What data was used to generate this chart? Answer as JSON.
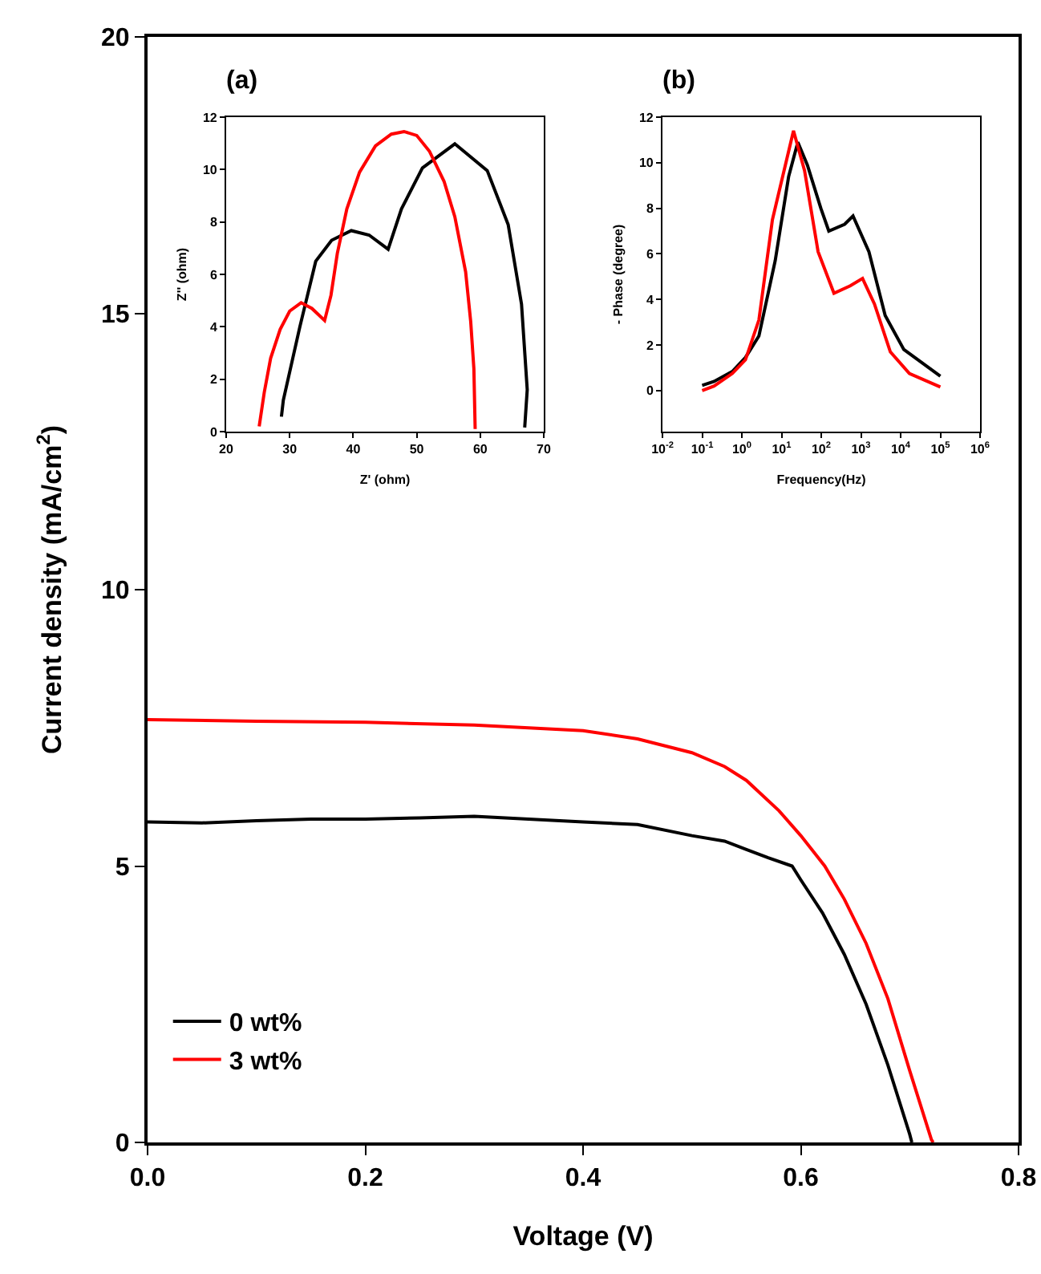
{
  "chart_data": [
    {
      "type": "line",
      "xlabel": "Voltage (V)",
      "ylabel": "Current density (mA/cm$^{2}$)",
      "xlim": [
        0,
        0.8
      ],
      "ylim": [
        0,
        20
      ],
      "xticks": [
        {
          "value": 0,
          "label": "0.0"
        },
        0.2,
        0.4,
        0.6,
        0.8
      ],
      "yticks": [
        0,
        5,
        10,
        15,
        20
      ],
      "legend": "bottom left",
      "x": [
        0,
        0.05,
        0.1,
        0.15,
        0.2,
        0.25,
        0.3,
        0.35,
        0.4,
        0.45,
        0.5,
        0.53,
        0.55,
        0.57,
        0.592,
        0.6,
        0.62,
        0.64,
        0.66,
        0.68,
        0.7,
        0.702
      ],
      "series": [
        {
          "name": "0 wt%",
          "color": "#000000",
          "values": [
            5.8,
            5.78,
            5.82,
            5.85,
            5.85,
            5.87,
            5.9,
            5.85,
            5.8,
            5.75,
            5.55,
            5.45,
            5.3,
            5.15,
            5.0,
            4.75,
            4.15,
            3.4,
            2.5,
            1.4,
            0.15,
            0
          ]
        },
        {
          "name": "3 wt%",
          "color": "#ff0000",
          "x": [
            0,
            0.1,
            0.2,
            0.3,
            0.4,
            0.45,
            0.5,
            0.53,
            0.55,
            0.58,
            0.6,
            0.622,
            0.64,
            0.66,
            0.68,
            0.7,
            0.72,
            0.7216
          ],
          "values": [
            7.65,
            7.62,
            7.6,
            7.55,
            7.45,
            7.3,
            7.05,
            6.8,
            6.55,
            6.0,
            5.55,
            5.0,
            4.4,
            3.6,
            2.6,
            1.3,
            0.05,
            0
          ]
        }
      ]
    },
    {
      "type": "line",
      "title": "(a)",
      "xlabel": "Z' (ohm)",
      "ylabel": "Z'' (ohm)",
      "xlim": [
        20,
        70
      ],
      "ylim": [
        0,
        12
      ],
      "xticks": [
        20,
        30,
        40,
        50,
        60,
        70
      ],
      "yticks": [
        0,
        2,
        4,
        6,
        8,
        10,
        12
      ],
      "series": [
        {
          "color": "#000000",
          "x": [
            28.7,
            29.0,
            31.6,
            34.1,
            36.6,
            39.7,
            42.5,
            45.5,
            47.6,
            50.9,
            56,
            61.1,
            64.4,
            66.5,
            67.4,
            67
          ],
          "values": [
            0.57,
            1.2,
            4.0,
            6.5,
            7.3,
            7.67,
            7.5,
            6.96,
            8.5,
            10.06,
            10.98,
            9.96,
            7.9,
            4.86,
            1.6,
            0.16
          ]
        },
        {
          "color": "#ff0000",
          "x": [
            25.2,
            26,
            27,
            28.5,
            30,
            31.8,
            33.5,
            35.5,
            36.5,
            37.5,
            39,
            41,
            43.5,
            46,
            48,
            50,
            52,
            54.3,
            56,
            57.7,
            58.5,
            59,
            59.2
          ],
          "values": [
            0.2,
            1.5,
            2.8,
            3.9,
            4.6,
            4.92,
            4.7,
            4.24,
            5.2,
            6.8,
            8.5,
            9.9,
            10.9,
            11.35,
            11.45,
            11.3,
            10.7,
            9.55,
            8.2,
            6.1,
            4.2,
            2.4,
            0.1
          ]
        }
      ]
    },
    {
      "type": "line",
      "title": "(b)",
      "xlabel": "Frequency(Hz)",
      "ylabel": "- Phase (degree)",
      "log": "x",
      "xlim": [
        0.01,
        1000000
      ],
      "ylim": [
        -1.8,
        12
      ],
      "xticks": [
        {
          "value": 0.01,
          "label": "10$^{-2}$"
        },
        {
          "value": 0.1,
          "label": "10$^{-1}$"
        },
        {
          "value": 1,
          "label": "10$^{0}$"
        },
        {
          "value": 10,
          "label": "10$^{1}$"
        },
        {
          "value": 100,
          "label": "10$^{2}$"
        },
        {
          "value": 1000,
          "label": "10$^{3}$"
        },
        {
          "value": 10000,
          "label": "10$^{4}$"
        },
        {
          "value": 100000,
          "label": "10$^{5}$"
        },
        {
          "value": 1000000,
          "label": "10$^{6}$"
        }
      ],
      "yticks": [
        0,
        2,
        4,
        6,
        8,
        10,
        12
      ],
      "series": [
        {
          "color": "#000000",
          "x": [
            0.1,
            0.2,
            0.575,
            1.23,
            2.69,
            6.92,
            15.1,
            25.7,
            44.7,
            97.7,
            155,
            389,
            631,
            1585,
            4074,
            12023,
            100000
          ],
          "values": [
            0.23,
            0.4,
            0.84,
            1.45,
            2.4,
            5.7,
            9.4,
            10.9,
            9.9,
            8.0,
            7.0,
            7.3,
            7.66,
            6.1,
            3.3,
            1.8,
            0.63
          ]
        },
        {
          "color": "#ff0000",
          "x": [
            0.1,
            0.2,
            0.575,
            1.23,
            2.69,
            5.89,
            20,
            38,
            83.2,
            209,
            537,
            1096,
            2188,
            5495,
            16596,
            100000
          ],
          "values": [
            0,
            0.2,
            0.75,
            1.35,
            3.1,
            7.5,
            11.4,
            9.65,
            6.1,
            4.27,
            4.6,
            4.92,
            3.8,
            1.7,
            0.75,
            0.16
          ]
        }
      ]
    }
  ]
}
